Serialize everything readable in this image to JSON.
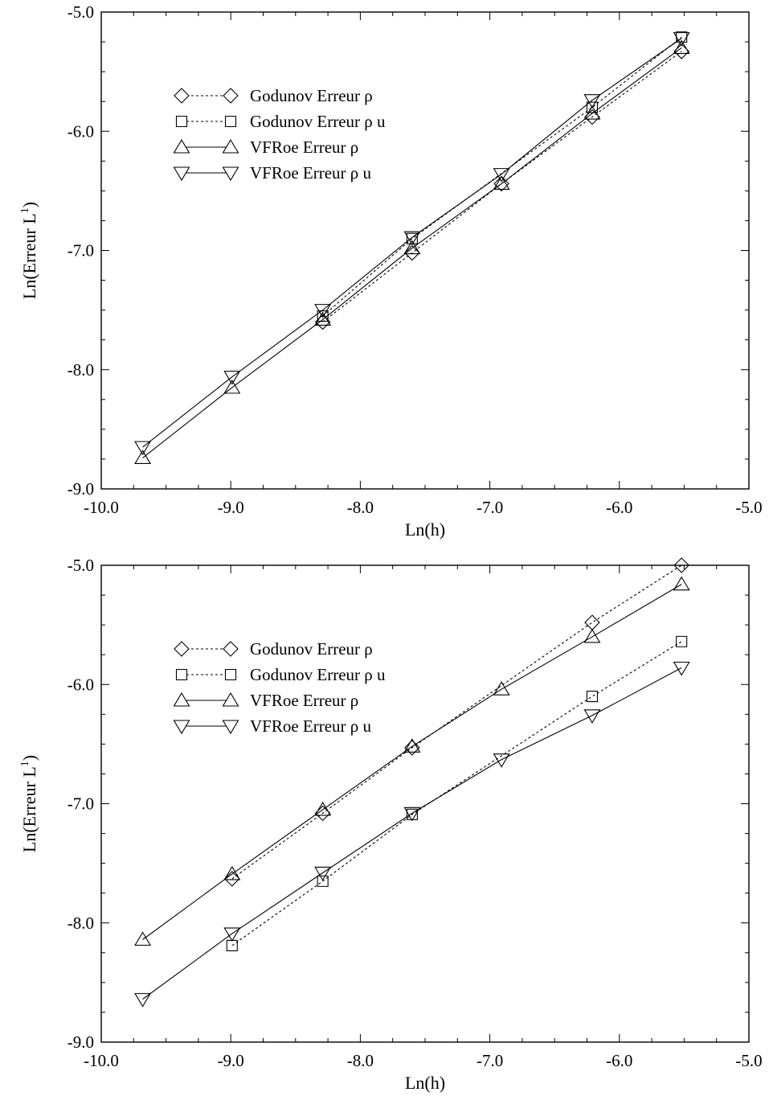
{
  "chart_data": [
    {
      "type": "line",
      "xlabel": "Ln(h)",
      "ylabel_main": "Ln(Erreur L",
      "ylabel_sup": "1",
      "ylabel_close": ")",
      "xlim": [
        -10.0,
        -5.0
      ],
      "ylim": [
        -9.0,
        -5.0
      ],
      "x_ticks": [
        "-10.0",
        "-9.0",
        "-8.0",
        "-7.0",
        "-6.0",
        "-5.0"
      ],
      "y_ticks": [
        "-9.0",
        "-8.0",
        "-7.0",
        "-6.0",
        "-5.0"
      ],
      "grid": false,
      "legend_position": "top-left",
      "series": [
        {
          "name": "Godunov Erreur ρ",
          "marker": "diamond",
          "dash": "dotted",
          "x": [
            -8.29,
            -7.6,
            -6.91,
            -6.21,
            -5.52
          ],
          "y": [
            -7.6,
            -7.02,
            -6.44,
            -5.88,
            -5.33
          ]
        },
        {
          "name": "Godunov Erreur ρ u",
          "marker": "square",
          "dash": "dotted",
          "x": [
            -8.29,
            -7.6,
            -6.21,
            -5.52
          ],
          "y": [
            -7.55,
            -6.9,
            -5.8,
            -5.21
          ]
        },
        {
          "name": "VFRoe Erreur ρ",
          "marker": "triangle-up",
          "dash": "solid",
          "x": [
            -9.68,
            -8.99,
            -8.29,
            -7.6,
            -6.91,
            -6.21,
            -5.52
          ],
          "y": [
            -8.74,
            -8.15,
            -7.58,
            -6.98,
            -6.44,
            -5.85,
            -5.3
          ]
        },
        {
          "name": "VFRoe Erreur ρ u",
          "marker": "triangle-down",
          "dash": "solid",
          "x": [
            -9.68,
            -8.99,
            -8.29,
            -7.6,
            -6.91,
            -6.21,
            -5.52
          ],
          "y": [
            -8.65,
            -8.06,
            -7.5,
            -6.89,
            -6.36,
            -5.74,
            -5.22
          ]
        }
      ]
    },
    {
      "type": "line",
      "xlabel": "Ln(h)",
      "ylabel_main": "Ln(Erreur L",
      "ylabel_sup": "1",
      "ylabel_close": ")",
      "xlim": [
        -10.0,
        -5.0
      ],
      "ylim": [
        -9.0,
        -5.0
      ],
      "x_ticks": [
        "-10.0",
        "-9.0",
        "-8.0",
        "-7.0",
        "-6.0",
        "-5.0"
      ],
      "y_ticks": [
        "-9.0",
        "-8.0",
        "-7.0",
        "-6.0",
        "-5.0"
      ],
      "grid": false,
      "legend_position": "top-left",
      "series": [
        {
          "name": "Godunov Erreur ρ",
          "marker": "diamond",
          "dash": "dotted",
          "x": [
            -8.99,
            -8.29,
            -7.6,
            -6.21,
            -5.52
          ],
          "y": [
            -7.63,
            -7.08,
            -6.53,
            -5.48,
            -5.0
          ]
        },
        {
          "name": "Godunov Erreur ρ u",
          "marker": "square",
          "dash": "dotted",
          "x": [
            -8.99,
            -8.29,
            -7.6,
            -6.21,
            -5.52
          ],
          "y": [
            -8.19,
            -7.65,
            -7.09,
            -6.1,
            -5.64
          ]
        },
        {
          "name": "VFRoe Erreur ρ",
          "marker": "triangle-up",
          "dash": "solid",
          "x": [
            -9.68,
            -8.99,
            -8.29,
            -7.6,
            -6.91,
            -6.21,
            -5.52
          ],
          "y": [
            -8.14,
            -7.59,
            -7.05,
            -6.52,
            -6.04,
            -5.6,
            -5.16
          ]
        },
        {
          "name": "VFRoe Erreur ρ u",
          "marker": "triangle-down",
          "dash": "solid",
          "x": [
            -9.68,
            -8.99,
            -8.29,
            -7.6,
            -6.91,
            -6.21,
            -5.52
          ],
          "y": [
            -8.64,
            -8.09,
            -7.58,
            -7.08,
            -6.63,
            -6.26,
            -5.86
          ]
        }
      ]
    }
  ]
}
